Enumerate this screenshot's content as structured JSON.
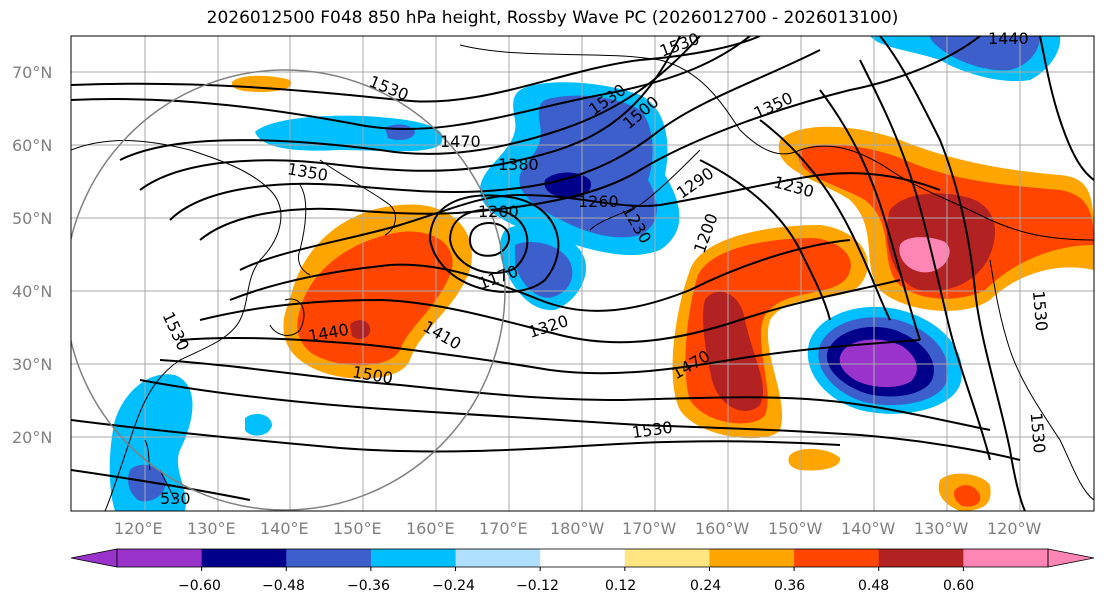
{
  "title": "2026012500 F048 850 hPa height, Rossby Wave PC (2026012700 - 2026013100)",
  "lat_labels": [
    "70°N",
    "60°N",
    "50°N",
    "40°N",
    "30°N",
    "20°N"
  ],
  "lon_labels": [
    "120°E",
    "130°E",
    "140°E",
    "150°E",
    "160°E",
    "170°E",
    "180°W",
    "170°W",
    "160°W",
    "150°W",
    "140°W",
    "130°W",
    "120°W"
  ],
  "contour_labels": [
    "1530",
    "1350",
    "1470",
    "1380",
    "1200",
    "1260",
    "1230",
    "1170",
    "1320",
    "1410",
    "1440",
    "1500",
    "1530",
    "1470",
    "1290",
    "1200",
    "1230",
    "1350",
    "1500",
    "1530",
    "1530",
    "1530",
    "1530",
    "1530",
    "1440"
  ],
  "colorbar": {
    "ticks": [
      "−0.60",
      "−0.48",
      "−0.36",
      "−0.24",
      "−0.12",
      "0.12",
      "0.24",
      "0.36",
      "0.48",
      "0.60"
    ],
    "colors": [
      "#9933cc",
      "#00008b",
      "#3d5fcc",
      "#00bfff",
      "#b0e0ff",
      "#ffffff",
      "#ffe680",
      "#ffa500",
      "#ff4500",
      "#b22222",
      "#ff85b4"
    ]
  }
}
